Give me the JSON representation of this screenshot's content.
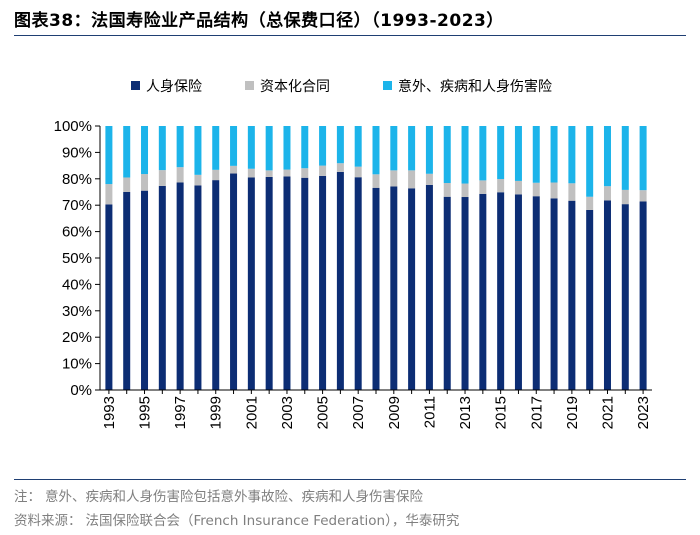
{
  "header": {
    "figure_label": "图表38：",
    "title": "法国寿险业产品结构（总保费口径）（1993-2023）"
  },
  "footer": {
    "note_label": "注：",
    "note": "意外、疾病和人身伤害险包括意外事故险、疾病和人身伤害保险",
    "source_label": "资料来源：",
    "source": "法国保险联合会（French Insurance Federation），华泰研究"
  },
  "colors": {
    "life": "#0c2d74",
    "capitalization": "#c0c0c0",
    "accident": "#1cb4ea"
  },
  "chart_data": {
    "type": "bar",
    "stacked": true,
    "title": "法国寿险业产品结构（总保费口径）（1993-2023）",
    "legend_position": "top",
    "ylim": [
      0,
      100
    ],
    "yticks": [
      "0%",
      "10%",
      "20%",
      "30%",
      "40%",
      "50%",
      "60%",
      "70%",
      "80%",
      "90%",
      "100%"
    ],
    "categories": [
      "1993",
      "1994",
      "1995",
      "1996",
      "1997",
      "1998",
      "1999",
      "2000",
      "2001",
      "2002",
      "2003",
      "2004",
      "2005",
      "2006",
      "2007",
      "2008",
      "2009",
      "2010",
      "2011",
      "2012",
      "2013",
      "2014",
      "2015",
      "2016",
      "2017",
      "2018",
      "2019",
      "2020",
      "2021",
      "2022",
      "2023"
    ],
    "xtick_labels": [
      "1993",
      "1995",
      "1997",
      "1999",
      "2001",
      "2003",
      "2005",
      "2007",
      "2009",
      "2011",
      "2013",
      "2015",
      "2017",
      "2019",
      "2021",
      "2023"
    ],
    "series": [
      {
        "name": "人身保险",
        "values": [
          70.3,
          75.0,
          75.5,
          77.3,
          78.6,
          77.5,
          79.5,
          82.0,
          80.5,
          80.7,
          80.9,
          80.4,
          81.1,
          82.6,
          80.6,
          76.6,
          77.1,
          76.4,
          77.7,
          73.2,
          73.1,
          74.3,
          74.9,
          74.1,
          73.4,
          72.6,
          71.7,
          68.2,
          71.8,
          70.4,
          71.4
        ]
      },
      {
        "name": "资本化合同",
        "values": [
          7.7,
          5.5,
          6.3,
          6.0,
          5.8,
          4.0,
          3.9,
          2.9,
          3.3,
          2.5,
          2.6,
          3.6,
          3.9,
          3.3,
          4.0,
          5.1,
          6.1,
          6.8,
          4.2,
          5.2,
          5.1,
          5.1,
          5.0,
          5.1,
          5.1,
          6.0,
          6.6,
          5.0,
          5.4,
          5.4,
          4.3
        ]
      },
      {
        "name": "意外、疾病和人身伤害险",
        "values": [
          22.0,
          19.5,
          18.2,
          16.7,
          15.6,
          18.5,
          16.6,
          15.1,
          16.2,
          16.8,
          16.5,
          16.0,
          15.0,
          14.1,
          15.4,
          18.3,
          16.8,
          16.8,
          18.1,
          21.6,
          21.8,
          20.6,
          20.1,
          20.8,
          21.5,
          21.4,
          21.7,
          26.8,
          22.8,
          24.2,
          24.3
        ]
      }
    ]
  }
}
